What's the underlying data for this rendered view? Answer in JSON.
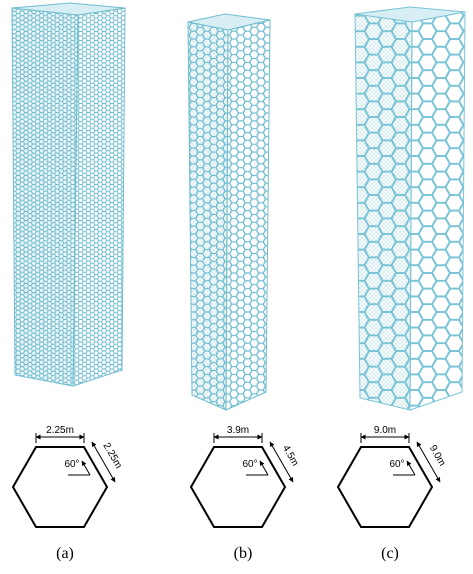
{
  "panels": [
    {
      "caption": "(a)",
      "top_dim": "2.25m",
      "side_dim": "2.25m",
      "angle": "60°"
    },
    {
      "caption": "(b)",
      "top_dim": "3.9m",
      "side_dim": "4.5m",
      "angle": "60°"
    },
    {
      "caption": "(c)",
      "top_dim": "9.0m",
      "side_dim": "9.0m",
      "angle": "60°"
    }
  ]
}
